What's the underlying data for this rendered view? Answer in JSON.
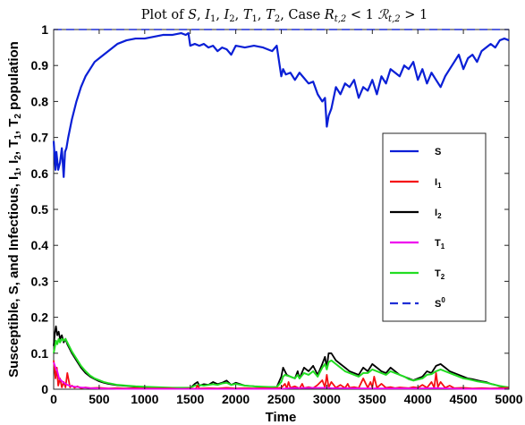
{
  "chart_data": {
    "type": "line",
    "title": "Plot of S, I1, I2, T1, T2, Case Rt,2 < 1 ℛt,2 > 1",
    "title_parts": {
      "prefix": "Plot of ",
      "S": "S",
      "I": "I",
      "T": "T",
      "sub1": "1",
      "sub2": "2",
      "case": "Case ",
      "R": "R",
      "Rscript": "ℛ",
      "tsub": "t,2",
      "lt": " < 1 ",
      "gt": " > 1"
    },
    "xlabel": "Time",
    "ylabel_parts": {
      "prefix": "Susceptible, S, and Infectious, I",
      "i1": "1",
      "i2": "2",
      "t1": "1",
      "t2": "2",
      "suffix": " population",
      "sep": ", ",
      "I": "I",
      "T": "T"
    },
    "xlim": [
      0,
      5000
    ],
    "ylim": [
      0,
      1
    ],
    "xticks": [
      "0",
      "500",
      "1000",
      "1500",
      "2000",
      "2500",
      "3000",
      "3500",
      "4000",
      "4500",
      "5000"
    ],
    "yticks": [
      "0",
      "0.1",
      "0.2",
      "0.3",
      "0.4",
      "0.5",
      "0.6",
      "0.7",
      "0.8",
      "0.9",
      "1"
    ],
    "grid": false,
    "legend_position": "right",
    "legend": [
      {
        "label": "S",
        "sub": "",
        "sup": ""
      },
      {
        "label": "I",
        "sub": "1",
        "sup": ""
      },
      {
        "label": "I",
        "sub": "2",
        "sup": ""
      },
      {
        "label": "T",
        "sub": "1",
        "sup": ""
      },
      {
        "label": "T",
        "sub": "2",
        "sup": ""
      },
      {
        "label": "S",
        "sub": "",
        "sup": "0"
      }
    ],
    "colors": {
      "S": "#0a1fd6",
      "I1": "#f50f14",
      "I2": "#000000",
      "T1": "#ee00ee",
      "T2": "#22dd22",
      "S0": "#1f2fd6"
    },
    "series": [
      {
        "name": "S",
        "x": [
          0,
          20,
          30,
          50,
          70,
          90,
          110,
          125,
          140,
          160,
          200,
          250,
          300,
          350,
          400,
          450,
          500,
          550,
          600,
          650,
          700,
          800,
          900,
          1000,
          1100,
          1200,
          1300,
          1400,
          1450,
          1480,
          1500,
          1550,
          1600,
          1650,
          1700,
          1750,
          1800,
          1850,
          1900,
          1950,
          2000,
          2100,
          2200,
          2300,
          2400,
          2450,
          2500,
          2520,
          2550,
          2600,
          2650,
          2700,
          2750,
          2800,
          2850,
          2900,
          2950,
          2980,
          3000,
          3020,
          3050,
          3100,
          3150,
          3200,
          3250,
          3300,
          3350,
          3400,
          3450,
          3500,
          3550,
          3600,
          3650,
          3700,
          3750,
          3800,
          3850,
          3900,
          3950,
          4000,
          4050,
          4100,
          4150,
          4200,
          4250,
          4300,
          4350,
          4400,
          4450,
          4500,
          4550,
          4600,
          4650,
          4700,
          4750,
          4800,
          4850,
          4900,
          4950,
          5000
        ],
        "y": [
          0.69,
          0.61,
          0.66,
          0.61,
          0.63,
          0.67,
          0.59,
          0.66,
          0.67,
          0.7,
          0.75,
          0.8,
          0.84,
          0.87,
          0.89,
          0.91,
          0.92,
          0.93,
          0.94,
          0.95,
          0.96,
          0.97,
          0.975,
          0.975,
          0.98,
          0.985,
          0.985,
          0.99,
          0.985,
          0.99,
          0.955,
          0.96,
          0.955,
          0.96,
          0.95,
          0.955,
          0.94,
          0.95,
          0.945,
          0.93,
          0.955,
          0.95,
          0.955,
          0.95,
          0.94,
          0.955,
          0.87,
          0.89,
          0.875,
          0.88,
          0.86,
          0.88,
          0.865,
          0.85,
          0.855,
          0.82,
          0.8,
          0.81,
          0.73,
          0.76,
          0.78,
          0.84,
          0.82,
          0.85,
          0.84,
          0.86,
          0.81,
          0.84,
          0.83,
          0.86,
          0.82,
          0.87,
          0.85,
          0.89,
          0.88,
          0.87,
          0.9,
          0.89,
          0.91,
          0.86,
          0.89,
          0.85,
          0.88,
          0.86,
          0.84,
          0.87,
          0.89,
          0.91,
          0.93,
          0.89,
          0.92,
          0.93,
          0.91,
          0.94,
          0.95,
          0.96,
          0.95,
          0.97,
          0.975,
          0.97
        ]
      },
      {
        "name": "I1",
        "x": [
          0,
          20,
          35,
          50,
          70,
          90,
          110,
          130,
          150,
          180,
          200,
          230,
          260,
          300,
          350,
          400,
          500,
          600,
          700,
          800,
          900,
          1000,
          1100,
          1200,
          1300,
          1400,
          1500,
          1560,
          1580,
          1600,
          1700,
          1800,
          1900,
          2000,
          2100,
          2200,
          2300,
          2400,
          2500,
          2540,
          2560,
          2580,
          2600,
          2650,
          2700,
          2730,
          2750,
          2800,
          2850,
          2900,
          2950,
          2980,
          3000,
          3020,
          3050,
          3100,
          3150,
          3200,
          3230,
          3250,
          3300,
          3350,
          3400,
          3450,
          3480,
          3500,
          3520,
          3550,
          3600,
          3650,
          3700,
          3750,
          3800,
          3850,
          3900,
          3950,
          4000,
          4050,
          4100,
          4150,
          4180,
          4200,
          4220,
          4250,
          4300,
          4350,
          4400,
          4500,
          4600,
          4700,
          4800,
          4900,
          5000
        ],
        "y": [
          0.08,
          0.03,
          0.06,
          0.01,
          0.03,
          0.005,
          0.02,
          0.005,
          0.045,
          0.005,
          0.01,
          0.004,
          0.008,
          0.003,
          0.005,
          0.003,
          0.004,
          0.002,
          0.003,
          0.002,
          0.003,
          0.002,
          0.002,
          0.002,
          0.002,
          0.001,
          0.002,
          0.001,
          0.01,
          0.002,
          0.003,
          0.002,
          0.004,
          0.002,
          0.003,
          0.002,
          0.003,
          0.002,
          0.004,
          0.015,
          0.002,
          0.02,
          0.004,
          0.008,
          0.002,
          0.015,
          0.003,
          0.006,
          0.003,
          0.012,
          0.025,
          0.005,
          0.04,
          0.005,
          0.02,
          0.004,
          0.012,
          0.003,
          0.015,
          0.004,
          0.006,
          0.003,
          0.03,
          0.004,
          0.02,
          0.005,
          0.035,
          0.004,
          0.015,
          0.004,
          0.006,
          0.003,
          0.005,
          0.004,
          0.003,
          0.006,
          0.004,
          0.012,
          0.004,
          0.02,
          0.004,
          0.045,
          0.006,
          0.02,
          0.004,
          0.01,
          0.003,
          0.004,
          0.002,
          0.003,
          0.002,
          0.003,
          0.004
        ]
      },
      {
        "name": "I2",
        "x": [
          0,
          15,
          25,
          40,
          55,
          70,
          90,
          110,
          130,
          150,
          180,
          200,
          250,
          300,
          350,
          400,
          450,
          500,
          550,
          600,
          700,
          800,
          900,
          1000,
          1100,
          1200,
          1300,
          1400,
          1500,
          1550,
          1580,
          1600,
          1650,
          1700,
          1750,
          1800,
          1850,
          1900,
          1950,
          2000,
          2100,
          2200,
          2300,
          2400,
          2450,
          2500,
          2520,
          2540,
          2560,
          2600,
          2650,
          2680,
          2700,
          2750,
          2800,
          2850,
          2900,
          2950,
          2980,
          3000,
          3020,
          3050,
          3100,
          3150,
          3200,
          3250,
          3300,
          3350,
          3400,
          3450,
          3500,
          3550,
          3600,
          3650,
          3700,
          3750,
          3800,
          3850,
          3900,
          3950,
          4000,
          4050,
          4100,
          4150,
          4200,
          4250,
          4300,
          4350,
          4400,
          4450,
          4500,
          4550,
          4600,
          4650,
          4700,
          4750,
          4800,
          4850,
          4900,
          4950,
          5000
        ],
        "y": [
          0.12,
          0.16,
          0.175,
          0.15,
          0.16,
          0.14,
          0.15,
          0.13,
          0.14,
          0.125,
          0.11,
          0.1,
          0.08,
          0.06,
          0.045,
          0.035,
          0.028,
          0.022,
          0.018,
          0.015,
          0.011,
          0.009,
          0.007,
          0.006,
          0.005,
          0.004,
          0.004,
          0.003,
          0.003,
          0.015,
          0.02,
          0.01,
          0.014,
          0.012,
          0.02,
          0.014,
          0.018,
          0.024,
          0.012,
          0.018,
          0.01,
          0.008,
          0.006,
          0.006,
          0.006,
          0.035,
          0.06,
          0.05,
          0.04,
          0.035,
          0.03,
          0.05,
          0.03,
          0.06,
          0.05,
          0.065,
          0.04,
          0.07,
          0.09,
          0.06,
          0.1,
          0.1,
          0.08,
          0.07,
          0.06,
          0.05,
          0.045,
          0.04,
          0.06,
          0.05,
          0.07,
          0.06,
          0.05,
          0.045,
          0.06,
          0.05,
          0.04,
          0.035,
          0.03,
          0.025,
          0.03,
          0.035,
          0.05,
          0.045,
          0.065,
          0.07,
          0.06,
          0.05,
          0.045,
          0.04,
          0.035,
          0.03,
          0.028,
          0.025,
          0.022,
          0.02,
          0.015,
          0.012,
          0.008,
          0.006,
          0.005
        ]
      },
      {
        "name": "T1",
        "x": [
          0,
          20,
          40,
          60,
          80,
          100,
          150,
          200,
          300,
          400,
          500,
          700,
          1000,
          1500,
          2000,
          2500,
          2600,
          3000,
          3050,
          3500,
          4000,
          4200,
          4500,
          5000
        ],
        "y": [
          0.075,
          0.06,
          0.05,
          0.03,
          0.025,
          0.02,
          0.012,
          0.008,
          0.005,
          0.003,
          0.002,
          0.001,
          0.001,
          0.001,
          0.001,
          0.001,
          0.003,
          0.004,
          0.003,
          0.002,
          0.002,
          0.003,
          0.001,
          0.001
        ]
      },
      {
        "name": "T2",
        "x": [
          0,
          15,
          25,
          40,
          55,
          70,
          90,
          110,
          130,
          150,
          180,
          200,
          250,
          300,
          350,
          400,
          450,
          500,
          550,
          600,
          700,
          800,
          900,
          1000,
          1100,
          1200,
          1300,
          1400,
          1500,
          1550,
          1600,
          1650,
          1700,
          1750,
          1800,
          1850,
          1900,
          1950,
          2000,
          2100,
          2200,
          2300,
          2400,
          2450,
          2500,
          2520,
          2540,
          2560,
          2600,
          2650,
          2680,
          2700,
          2750,
          2800,
          2850,
          2900,
          2950,
          2980,
          3000,
          3020,
          3050,
          3100,
          3150,
          3200,
          3250,
          3300,
          3350,
          3400,
          3450,
          3500,
          3550,
          3600,
          3650,
          3700,
          3750,
          3800,
          3850,
          3900,
          3950,
          4000,
          4050,
          4100,
          4150,
          4200,
          4250,
          4300,
          4350,
          4400,
          4450,
          4500,
          4550,
          4600,
          4650,
          4700,
          4750,
          4800,
          4850,
          4900,
          4950,
          5000
        ],
        "y": [
          0.1,
          0.12,
          0.135,
          0.125,
          0.14,
          0.13,
          0.14,
          0.135,
          0.14,
          0.13,
          0.115,
          0.105,
          0.085,
          0.065,
          0.05,
          0.038,
          0.03,
          0.025,
          0.02,
          0.017,
          0.012,
          0.01,
          0.008,
          0.007,
          0.006,
          0.005,
          0.004,
          0.004,
          0.004,
          0.01,
          0.012,
          0.01,
          0.012,
          0.014,
          0.012,
          0.016,
          0.018,
          0.012,
          0.015,
          0.01,
          0.008,
          0.007,
          0.006,
          0.006,
          0.02,
          0.035,
          0.04,
          0.038,
          0.035,
          0.03,
          0.04,
          0.03,
          0.045,
          0.04,
          0.05,
          0.035,
          0.06,
          0.07,
          0.055,
          0.075,
          0.08,
          0.07,
          0.06,
          0.05,
          0.045,
          0.04,
          0.035,
          0.045,
          0.045,
          0.055,
          0.05,
          0.045,
          0.04,
          0.05,
          0.045,
          0.04,
          0.035,
          0.028,
          0.024,
          0.027,
          0.03,
          0.04,
          0.042,
          0.05,
          0.055,
          0.05,
          0.045,
          0.04,
          0.035,
          0.03,
          0.028,
          0.025,
          0.022,
          0.02,
          0.018,
          0.015,
          0.012,
          0.009,
          0.007,
          0.005
        ]
      },
      {
        "name": "S0",
        "x": [
          0,
          5000
        ],
        "y": [
          1,
          1
        ],
        "dashed": true
      }
    ]
  }
}
